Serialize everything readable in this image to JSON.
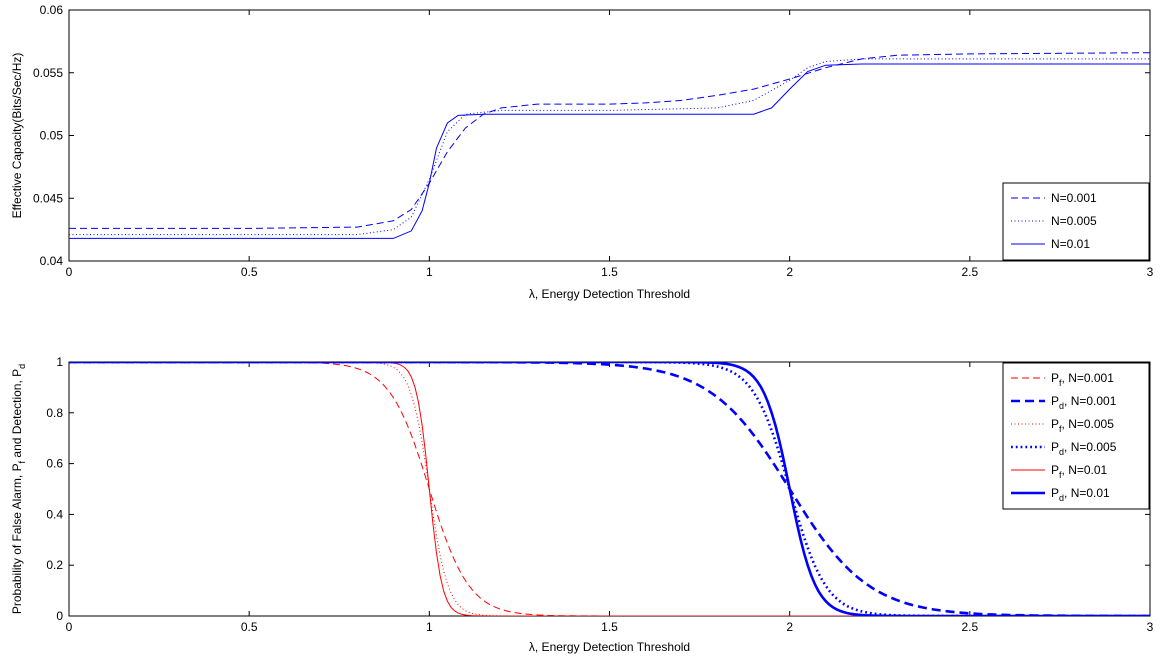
{
  "chart_data": [
    {
      "type": "line",
      "xlabel": "λ, Energy Detection Threshold",
      "ylabel": "Effective Capacity(Bits/Sec/Hz)",
      "xlim": [
        0,
        3
      ],
      "ylim": [
        0.04,
        0.06
      ],
      "xticks": [
        0,
        0.5,
        1,
        1.5,
        2,
        2.5,
        3
      ],
      "yticks": [
        0.04,
        0.045,
        0.05,
        0.055,
        0.06
      ],
      "xtick_labels": [
        "0",
        "0.5",
        "1",
        "1.5",
        "2",
        "2.5",
        "3"
      ],
      "ytick_labels": [
        "0.04",
        "0.045",
        "0.05",
        "0.055",
        "0.06"
      ],
      "grid": false,
      "legend_position": "bottom-right",
      "series": [
        {
          "name": "N=0.001",
          "color": "#0000ff",
          "style": "dashed",
          "width": 1,
          "points": [
            [
              0,
              0.0426
            ],
            [
              0.5,
              0.0426
            ],
            [
              0.8,
              0.0427
            ],
            [
              0.9,
              0.0432
            ],
            [
              0.95,
              0.0441
            ],
            [
              1.0,
              0.0462
            ],
            [
              1.05,
              0.0487
            ],
            [
              1.1,
              0.0506
            ],
            [
              1.15,
              0.0517
            ],
            [
              1.2,
              0.0522
            ],
            [
              1.3,
              0.0525
            ],
            [
              1.5,
              0.0525
            ],
            [
              1.6,
              0.0526
            ],
            [
              1.7,
              0.0528
            ],
            [
              1.8,
              0.0532
            ],
            [
              1.9,
              0.0537
            ],
            [
              2.0,
              0.0545
            ],
            [
              2.1,
              0.0554
            ],
            [
              2.2,
              0.0561
            ],
            [
              2.3,
              0.0564
            ],
            [
              2.5,
              0.0565
            ],
            [
              3.0,
              0.0566
            ]
          ]
        },
        {
          "name": "N=0.005",
          "color": "#0000ff",
          "style": "dotted",
          "width": 1,
          "points": [
            [
              0,
              0.0421
            ],
            [
              0.8,
              0.0421
            ],
            [
              0.9,
              0.0425
            ],
            [
              0.95,
              0.0435
            ],
            [
              1.0,
              0.0465
            ],
            [
              1.05,
              0.0503
            ],
            [
              1.1,
              0.0517
            ],
            [
              1.2,
              0.052
            ],
            [
              1.5,
              0.052
            ],
            [
              1.8,
              0.0522
            ],
            [
              1.9,
              0.0528
            ],
            [
              2.0,
              0.0544
            ],
            [
              2.05,
              0.0554
            ],
            [
              2.1,
              0.0559
            ],
            [
              2.2,
              0.0561
            ],
            [
              3.0,
              0.0561
            ]
          ]
        },
        {
          "name": "N=0.01",
          "color": "#0000ff",
          "style": "solid",
          "width": 1,
          "points": [
            [
              0,
              0.0418
            ],
            [
              0.9,
              0.0418
            ],
            [
              0.95,
              0.0424
            ],
            [
              0.98,
              0.044
            ],
            [
              1.0,
              0.0462
            ],
            [
              1.02,
              0.049
            ],
            [
              1.05,
              0.051
            ],
            [
              1.08,
              0.0516
            ],
            [
              1.15,
              0.0517
            ],
            [
              1.9,
              0.0517
            ],
            [
              1.95,
              0.0522
            ],
            [
              2.0,
              0.0537
            ],
            [
              2.05,
              0.0551
            ],
            [
              2.1,
              0.0556
            ],
            [
              2.2,
              0.0557
            ],
            [
              3.0,
              0.0557
            ]
          ]
        }
      ]
    },
    {
      "type": "line",
      "xlabel": "λ, Energy Detection Threshold",
      "ylabel": "Probability of False Alarm, P",
      "ylabel_parts": [
        "f",
        " and Detection, P",
        "d"
      ],
      "xlim": [
        0,
        3
      ],
      "ylim": [
        0,
        1
      ],
      "xticks": [
        0,
        0.5,
        1,
        1.5,
        2,
        2.5,
        3
      ],
      "yticks": [
        0,
        0.2,
        0.4,
        0.6,
        0.8,
        1
      ],
      "xtick_labels": [
        "0",
        "0.5",
        "1",
        "1.5",
        "2",
        "2.5",
        "3"
      ],
      "ytick_labels": [
        "0",
        "0.2",
        "0.4",
        "0.6",
        "0.8",
        "1"
      ],
      "grid": false,
      "legend_position": "top-right",
      "series": [
        {
          "name": "P",
          "sub": "f",
          "suffix": ", N=0.001",
          "color": "#ff0000",
          "style": "dashed",
          "width": 1,
          "center": 1.0,
          "spread": 0.055
        },
        {
          "name": "P",
          "sub": "d",
          "suffix": ", N=0.001",
          "color": "#0000ff",
          "style": "dashed",
          "width": 2.6,
          "center": 2.0,
          "spread": 0.11
        },
        {
          "name": "P",
          "sub": "f",
          "suffix": ", N=0.005",
          "color": "#ff0000",
          "style": "dotted",
          "width": 1,
          "center": 1.0,
          "spread": 0.026
        },
        {
          "name": "P",
          "sub": "d",
          "suffix": ", N=0.005",
          "color": "#0000ff",
          "style": "dotted",
          "width": 2.6,
          "center": 2.0,
          "spread": 0.05
        },
        {
          "name": "P",
          "sub": "f",
          "suffix": ", N=0.01",
          "color": "#ff0000",
          "style": "solid",
          "width": 1,
          "center": 1.0,
          "spread": 0.018
        },
        {
          "name": "P",
          "sub": "d",
          "suffix": ", N=0.01",
          "color": "#0000ff",
          "style": "solid",
          "width": 2.6,
          "center": 2.0,
          "spread": 0.036
        }
      ]
    }
  ]
}
